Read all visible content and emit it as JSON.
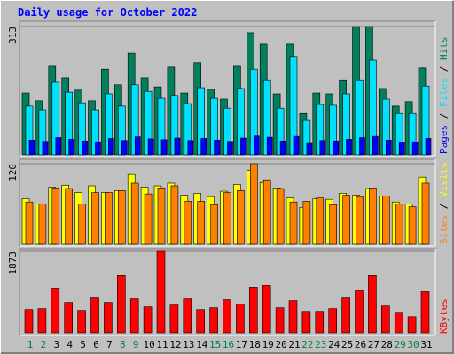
{
  "chart_data": [
    {
      "type": "bar",
      "title": "Daily usage for October 2022",
      "ylim": [
        0,
        313
      ],
      "yticks": [
        313
      ],
      "grid": true,
      "series": [
        {
          "name": "Hits",
          "color": "#00805c",
          "values": [
            151,
            132,
            216,
            188,
            158,
            132,
            209,
            171,
            248,
            188,
            166,
            214,
            151,
            225,
            160,
            136,
            216,
            298,
            270,
            149,
            270,
            101,
            151,
            149,
            183,
            313,
            313,
            162,
            119,
            130,
            212
          ]
        },
        {
          "name": "Files",
          "color": "#00e0ff",
          "values": [
            119,
            110,
            177,
            153,
            127,
            110,
            149,
            119,
            171,
            155,
            138,
            145,
            125,
            164,
            138,
            114,
            162,
            209,
            183,
            114,
            240,
            84,
            123,
            121,
            149,
            183,
            231,
            136,
            101,
            101,
            168
          ]
        },
        {
          "name": "Pages",
          "color": "#0000ff",
          "values": [
            36,
            33,
            42,
            38,
            34,
            32,
            40,
            35,
            44,
            39,
            37,
            41,
            35,
            40,
            36,
            33,
            41,
            46,
            43,
            34,
            45,
            28,
            35,
            34,
            38,
            42,
            45,
            36,
            31,
            32,
            40
          ]
        }
      ]
    },
    {
      "type": "bar",
      "ylim": [
        0,
        120
      ],
      "yticks": [
        120
      ],
      "grid": true,
      "series": [
        {
          "name": "Visits",
          "color": "#ffff00",
          "values": [
            68,
            60,
            85,
            88,
            77,
            87,
            77,
            80,
            104,
            85,
            87,
            91,
            73,
            76,
            71,
            79,
            89,
            110,
            92,
            84,
            69,
            55,
            68,
            67,
            76,
            73,
            83,
            72,
            63,
            60,
            100
          ]
        },
        {
          "name": "Sites",
          "color": "#ff8000",
          "values": [
            63,
            60,
            84,
            83,
            60,
            77,
            77,
            80,
            91,
            75,
            84,
            87,
            64,
            64,
            59,
            77,
            80,
            120,
            96,
            83,
            63,
            64,
            69,
            59,
            73,
            71,
            84,
            72,
            60,
            56,
            91
          ]
        }
      ]
    },
    {
      "type": "bar",
      "ylim": [
        0,
        1873
      ],
      "yticks": [
        1873
      ],
      "grid": true,
      "categories": [
        "1",
        "2",
        "3",
        "4",
        "5",
        "6",
        "7",
        "8",
        "9",
        "10",
        "11",
        "12",
        "13",
        "14",
        "15",
        "16",
        "17",
        "18",
        "19",
        "20",
        "21",
        "22",
        "23",
        "24",
        "25",
        "26",
        "27",
        "28",
        "29",
        "30",
        "31"
      ],
      "label_colors": [
        "#008040",
        "#008040",
        "#000000",
        "#000000",
        "#000000",
        "#000000",
        "#000000",
        "#008040",
        "#008040",
        "#000000",
        "#000000",
        "#000000",
        "#000000",
        "#000000",
        "#008040",
        "#008040",
        "#000000",
        "#000000",
        "#000000",
        "#000000",
        "#000000",
        "#008040",
        "#008040",
        "#000000",
        "#000000",
        "#000000",
        "#000000",
        "#000000",
        "#008040",
        "#008040",
        "#000000"
      ],
      "series": [
        {
          "name": "KBytes",
          "color": "#ff0000",
          "values": [
            535,
            556,
            1029,
            700,
            515,
            803,
            700,
            1317,
            782,
            597,
            1873,
            638,
            782,
            535,
            576,
            762,
            659,
            1050,
            1091,
            576,
            741,
            494,
            494,
            556,
            803,
            968,
            1317,
            617,
            453,
            370,
            947
          ]
        }
      ]
    }
  ]
}
